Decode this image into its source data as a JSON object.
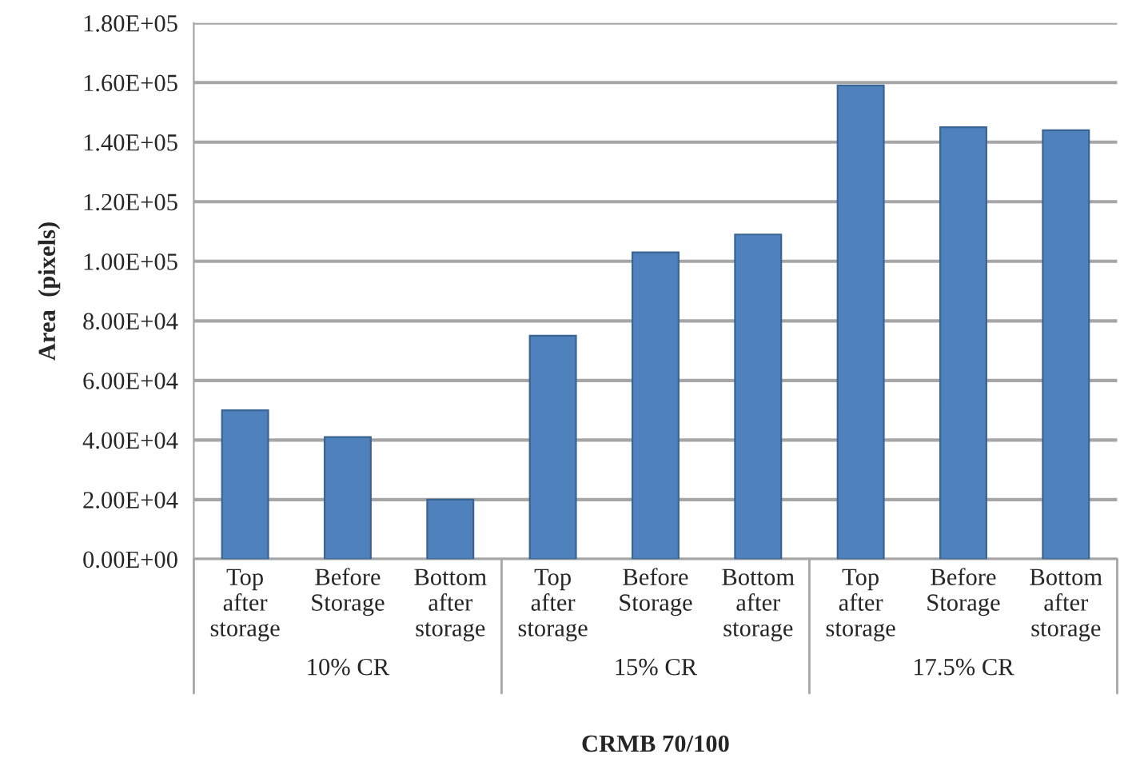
{
  "chart_data": {
    "type": "bar",
    "xlabel": "CRMB 70/100",
    "ylabel": "Area  (pixels)",
    "categories": [
      "Top after storage",
      "Before Storage",
      "Bottom after storage",
      "Top after storage",
      "Before Storage",
      "Bottom after storage",
      "Top after storage",
      "Before Storage",
      "Bottom after storage"
    ],
    "values": [
      50000,
      41000,
      20000,
      75000,
      103000,
      109000,
      159000,
      145000,
      144000
    ],
    "color": "#4f81bd",
    "annotations": [
      "10% CR",
      "15% CR",
      "17.5% CR"
    ],
    "ylim": [
      0,
      180000
    ],
    "yticks": [
      {
        "value": 0,
        "label": "0.00E+00"
      },
      {
        "value": 20000,
        "label": "2.00E+04"
      },
      {
        "value": 40000,
        "label": "4.00E+04"
      },
      {
        "value": 60000,
        "label": "6.00E+04"
      },
      {
        "value": 80000,
        "label": "8.00E+04"
      },
      {
        "value": 100000,
        "label": "1.00E+05"
      },
      {
        "value": 120000,
        "label": "1.20E+05"
      },
      {
        "value": 140000,
        "label": "1.40E+05"
      },
      {
        "value": 160000,
        "label": "1.60E+05"
      },
      {
        "value": 180000,
        "label": "1.80E+05"
      }
    ],
    "grid": "y"
  }
}
